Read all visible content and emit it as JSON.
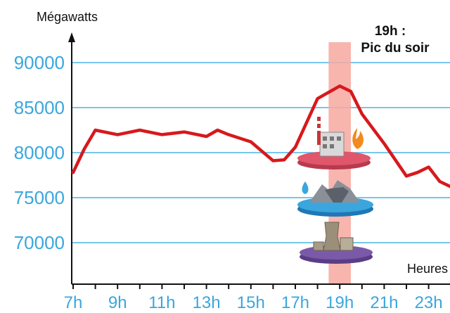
{
  "chart_data": {
    "type": "line",
    "ylabel": "Mégawatts",
    "xlabel": "Heures",
    "annotation": {
      "line1": "19h :",
      "line2": "Pic du soir",
      "x": 19
    },
    "ylim": [
      66000,
      93500
    ],
    "xlim": [
      7,
      24
    ],
    "y_ticks": [
      70000,
      75000,
      80000,
      85000,
      90000
    ],
    "y_tick_labels": [
      "70000",
      "75000",
      "80000",
      "85000",
      "90000"
    ],
    "x_ticks": [
      7,
      9,
      11,
      13,
      15,
      17,
      19,
      21,
      23
    ],
    "x_tick_labels": [
      "7h",
      "9h",
      "11h",
      "13h",
      "15h",
      "17h",
      "19h",
      "21h",
      "23h"
    ],
    "grid": true,
    "highlight_band": [
      18.5,
      19.5
    ],
    "colors": {
      "line": "#d7191c",
      "grid": "#4ab4e6",
      "ticks": "#3aa6dd",
      "band": "#f7a8a0"
    },
    "legend_icons": [
      {
        "name": "thermal-plant-icon",
        "color": "#e0566b"
      },
      {
        "name": "hydro-dam-icon",
        "color": "#3aa6dd"
      },
      {
        "name": "nuclear-plant-icon",
        "color": "#7a5aa8"
      }
    ],
    "series": [
      {
        "x": [
          7,
          7.5,
          8,
          9,
          10,
          11,
          12,
          13,
          13.5,
          14,
          15,
          16,
          16.5,
          17,
          18,
          19,
          19.5,
          20,
          21,
          22,
          22.5,
          23,
          23.5,
          24
        ],
        "values": [
          77800,
          80400,
          82500,
          82000,
          82500,
          82000,
          82300,
          81800,
          82500,
          82000,
          81200,
          79100,
          79200,
          80600,
          86000,
          87400,
          86800,
          84300,
          81000,
          77400,
          77800,
          78400,
          76800,
          76200
        ]
      }
    ]
  }
}
